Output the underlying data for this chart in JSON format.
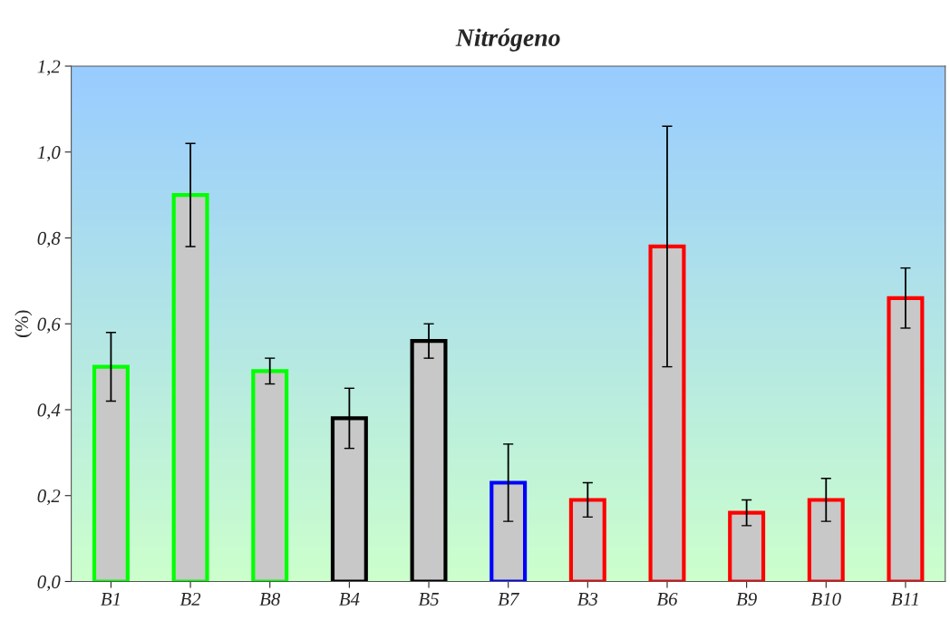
{
  "chart_data": {
    "type": "bar",
    "title": "Nitrógeno",
    "ylabel": "(%)",
    "categories": [
      "B1",
      "B2",
      "B8",
      "B4",
      "B5",
      "B7",
      "B3",
      "B6",
      "B9",
      "B10",
      "B11"
    ],
    "values": [
      0.5,
      0.9,
      0.49,
      0.38,
      0.56,
      0.23,
      0.19,
      0.78,
      0.16,
      0.19,
      0.66
    ],
    "errors": [
      0.08,
      0.12,
      0.03,
      0.07,
      0.04,
      0.09,
      0.04,
      0.28,
      0.03,
      0.05,
      0.07
    ],
    "colors": [
      "#00ff00",
      "#00ff00",
      "#00ff00",
      "#000000",
      "#000000",
      "#0000ff",
      "#ff0000",
      "#ff0000",
      "#ff0000",
      "#ff0000",
      "#ff0000"
    ],
    "ylim": [
      0,
      1.2
    ],
    "yticks": [
      {
        "value": 0,
        "label": "0,0"
      },
      {
        "value": 0.2,
        "label": "0,2"
      },
      {
        "value": 0.4,
        "label": "0,4"
      },
      {
        "value": 0.6,
        "label": "0,6"
      },
      {
        "value": 0.8,
        "label": "0,8"
      },
      {
        "value": 1.0,
        "label": "1,0"
      },
      {
        "value": 1.2,
        "label": "1,2"
      }
    ],
    "grid": false,
    "legend": false
  }
}
